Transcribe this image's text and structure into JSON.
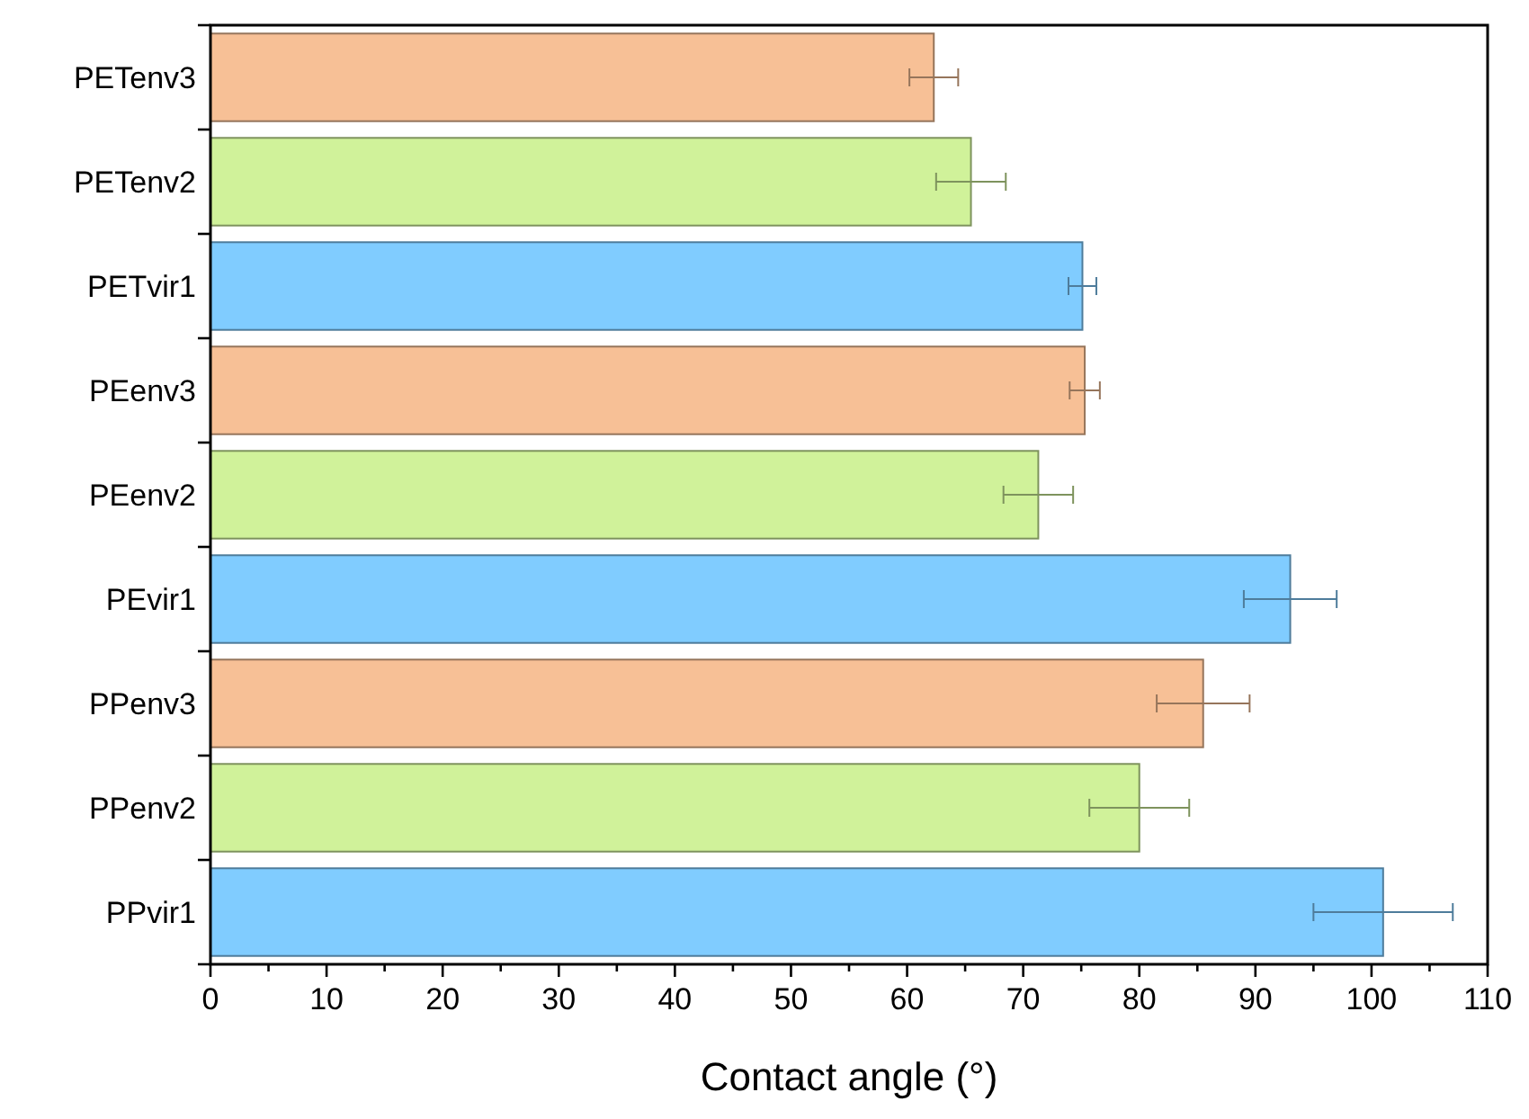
{
  "chart_data": {
    "type": "bar",
    "orientation": "horizontal",
    "xlabel": "Contact angle (°)",
    "categories": [
      "PETenv3",
      "PETenv2",
      "PETvir1",
      "PEenv3",
      "PEenv2",
      "PEvir1",
      "PPenv3",
      "PPenv2",
      "PPvir1"
    ],
    "values": [
      62.3,
      65.5,
      75.1,
      75.3,
      71.3,
      93.0,
      85.5,
      80.0,
      101.0
    ],
    "errors": [
      2.1,
      3.0,
      1.2,
      1.3,
      3.0,
      4.0,
      4.0,
      4.3,
      6.0
    ],
    "colors": [
      "#f7c096",
      "#d0f29a",
      "#80ccff",
      "#f7c096",
      "#d0f29a",
      "#80ccff",
      "#f7c096",
      "#d0f29a",
      "#80ccff"
    ],
    "xlim": [
      0,
      110
    ],
    "xticks": [
      0,
      {
        "value": 5,
        "label": null
      },
      10,
      {
        "value": 15,
        "label": null
      },
      20,
      {
        "value": 25,
        "label": null
      },
      30,
      {
        "value": 35,
        "label": null
      },
      40,
      {
        "value": 45,
        "label": null
      },
      50,
      {
        "value": 55,
        "label": null
      },
      60,
      {
        "value": 65,
        "label": null
      },
      70,
      {
        "value": 75,
        "label": null
      },
      80,
      {
        "value": 85,
        "label": null
      },
      90,
      {
        "value": 95,
        "label": null
      },
      100,
      {
        "value": 105,
        "label": null
      },
      110
    ],
    "grid": false
  }
}
